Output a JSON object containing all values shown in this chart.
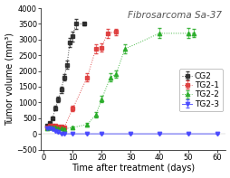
{
  "title": "Fibrosarcoma Sa-37",
  "xlabel": "Time after treatment (days)",
  "ylabel": "Tumor volume (mm³)",
  "xlim": [
    -1,
    63
  ],
  "ylim": [
    -500,
    4000
  ],
  "xticks": [
    0,
    10,
    20,
    30,
    40,
    50,
    60
  ],
  "yticks": [
    -500,
    0,
    500,
    1000,
    1500,
    2000,
    2500,
    3000,
    3500,
    4000
  ],
  "series": [
    {
      "label": "CG2",
      "color": "#222222",
      "marker": "s",
      "linestyle": ":",
      "x": [
        1,
        2,
        3,
        4,
        5,
        6,
        7,
        8,
        9,
        10,
        11,
        14
      ],
      "y": [
        250,
        350,
        500,
        820,
        1100,
        1400,
        1800,
        2200,
        2900,
        3100,
        3500,
        3500
      ],
      "yerr": [
        30,
        40,
        50,
        70,
        90,
        100,
        110,
        120,
        140,
        150,
        160,
        50
      ]
    },
    {
      "label": "TG2-1",
      "color": "#dd3333",
      "marker": "s",
      "linestyle": ":",
      "x": [
        1,
        2,
        3,
        4,
        5,
        6,
        7,
        10,
        15,
        18,
        20,
        22,
        25
      ],
      "y": [
        200,
        250,
        270,
        260,
        240,
        220,
        200,
        800,
        1800,
        2700,
        2750,
        3200,
        3250
      ],
      "yerr": [
        30,
        30,
        30,
        30,
        30,
        30,
        25,
        90,
        130,
        150,
        140,
        140,
        100
      ]
    },
    {
      "label": "TG2-2",
      "color": "#22aa22",
      "marker": "^",
      "linestyle": ":",
      "x": [
        1,
        2,
        3,
        4,
        5,
        6,
        7,
        10,
        15,
        18,
        20,
        23,
        25,
        28,
        40,
        50,
        52
      ],
      "y": [
        180,
        200,
        210,
        200,
        190,
        170,
        160,
        200,
        300,
        600,
        1100,
        1800,
        1900,
        2700,
        3200,
        3200,
        3200
      ],
      "yerr": [
        25,
        25,
        25,
        25,
        25,
        25,
        20,
        30,
        50,
        80,
        100,
        130,
        110,
        150,
        160,
        160,
        130
      ]
    },
    {
      "label": "TG2-3",
      "color": "#4444ff",
      "marker": "v",
      "linestyle": "-",
      "x": [
        1,
        2,
        3,
        4,
        5,
        6,
        7,
        10,
        15,
        20,
        30,
        40,
        50,
        60
      ],
      "y": [
        180,
        180,
        160,
        100,
        50,
        0,
        0,
        0,
        0,
        0,
        0,
        0,
        0,
        0
      ],
      "yerr": [
        25,
        25,
        20,
        15,
        15,
        10,
        10,
        10,
        10,
        10,
        10,
        10,
        10,
        10
      ]
    }
  ],
  "background_color": "#ffffff",
  "title_fontsize": 7.5,
  "label_fontsize": 7,
  "tick_fontsize": 6,
  "legend_fontsize": 6.5
}
